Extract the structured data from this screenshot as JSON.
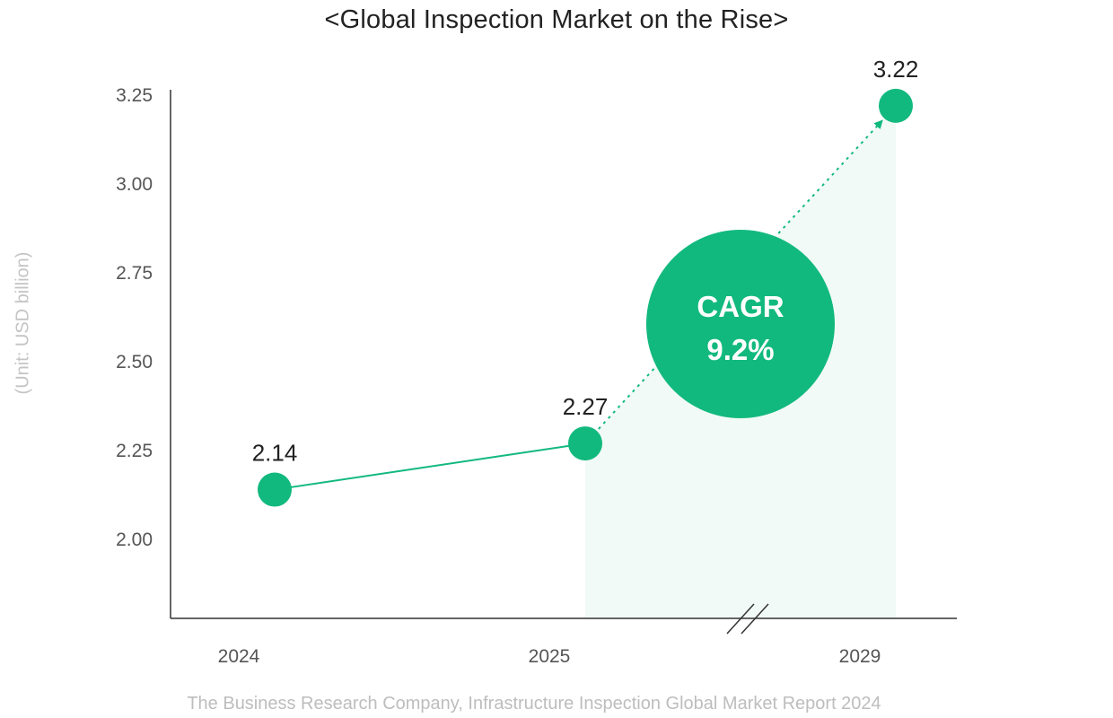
{
  "chart_data": {
    "type": "line",
    "title": "<Global Inspection Market on the Rise>",
    "ylabel": "(Unit: USD billion)",
    "source": "The Business Research Company, Infrastructure Inspection Global Market Report 2024",
    "categories": [
      "2024",
      "2025",
      "2029"
    ],
    "values": [
      2.14,
      2.27,
      3.22
    ],
    "data_labels": [
      "2.14",
      "2.27",
      "3.22"
    ],
    "ylim": [
      1.775,
      3.25
    ],
    "yticks": [
      {
        "value": 2.0,
        "label": "2.00"
      },
      {
        "value": 2.25,
        "label": "2.25"
      },
      {
        "value": 2.5,
        "label": "2.50"
      },
      {
        "value": 2.75,
        "label": "2.75"
      },
      {
        "value": 3.0,
        "label": "3.00"
      },
      {
        "value": 3.25,
        "label": "3.25"
      }
    ],
    "grid": false,
    "x_axis_break": "between 2025 and 2029",
    "projection_segment": "2025 to 2029, dotted with shaded area",
    "annotation": {
      "line1": "CAGR",
      "line2": "9.2%"
    },
    "colors": {
      "accent": "#12b97e",
      "shade": "#f1faf6",
      "axis": "#333333",
      "tick_text": "#555555",
      "label_text": "#222222",
      "muted_text": "#c4c4c4"
    }
  }
}
